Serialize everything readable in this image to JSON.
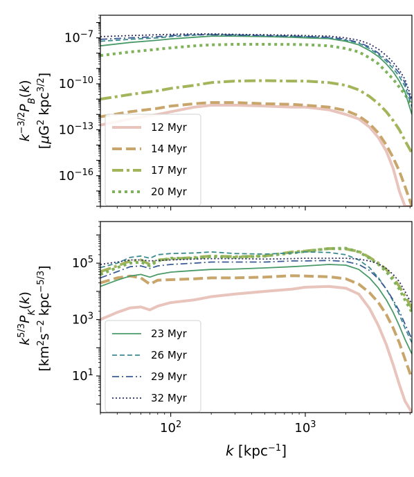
{
  "figure": {
    "xlabel": "k [kpc⁻¹]",
    "xlabel_main": "k",
    "xlabel_unit": " [kpc",
    "xlabel_sup": "−1",
    "xlabel_close": "]"
  },
  "chart_data": [
    {
      "type": "line",
      "id": "magnetic",
      "xscale": "log",
      "yscale": "log",
      "xlim": [
        30,
        6200
      ],
      "ylim": [
        1e-18,
        3e-06
      ],
      "xlabel": "",
      "ylabel_line1": "k^{-3/2} P_B(k)",
      "ylabel_line2": "[μG² kpc³ᐟ²]",
      "yticks": [
        {
          "value": 1e-07,
          "base": "10",
          "exp": "−7"
        },
        {
          "value": 1e-10,
          "base": "10",
          "exp": "−10"
        },
        {
          "value": 1e-13,
          "base": "10",
          "exp": "−13"
        },
        {
          "value": 1e-16,
          "base": "10",
          "exp": "−16"
        }
      ],
      "legend": {
        "position": "lower-left",
        "entries": [
          "12 Myr",
          "14 Myr",
          "17 Myr",
          "20 Myr"
        ]
      },
      "x": [
        30,
        50,
        80,
        100,
        150,
        200,
        300,
        500,
        800,
        1000,
        1500,
        2000,
        2500,
        3000,
        3500,
        4000,
        4500,
        5000,
        5500,
        6200
      ],
      "series": [
        {
          "name": "12 Myr",
          "values": [
            2e-13,
            5e-13,
            1e-12,
            1.5e-12,
            3e-12,
            4e-12,
            4e-12,
            3.5e-12,
            3e-12,
            3e-12,
            2e-12,
            1e-12,
            5e-13,
            1.5e-13,
            3e-14,
            4e-15,
            3e-16,
            1e-17,
            1e-18,
            1e-18
          ]
        },
        {
          "name": "14 Myr",
          "values": [
            7e-13,
            1.5e-12,
            2.5e-12,
            3.5e-12,
            5e-12,
            6e-12,
            6e-12,
            5e-12,
            4.5e-12,
            4e-12,
            3e-12,
            1.8e-12,
            8e-13,
            2.5e-13,
            6e-14,
            1e-14,
            1.5e-15,
            2e-16,
            2e-17,
            1e-18
          ]
        },
        {
          "name": "17 Myr",
          "values": [
            1e-11,
            2e-11,
            3.5e-11,
            5e-11,
            8e-11,
            1.2e-10,
            1.5e-10,
            1.6e-10,
            1.5e-10,
            1.5e-10,
            1.2e-10,
            8e-11,
            4e-11,
            1.5e-11,
            5e-12,
            1.5e-12,
            4e-13,
            1e-13,
            2e-14,
            3e-15
          ]
        },
        {
          "name": "20 Myr",
          "values": [
            7e-09,
            1.2e-08,
            1.8e-08,
            2.2e-08,
            3e-08,
            3.5e-08,
            3.8e-08,
            3.8e-08,
            3.7e-08,
            3.6e-08,
            3e-08,
            2e-08,
            1.2e-08,
            5e-09,
            2e-09,
            6e-10,
            2e-10,
            6e-11,
            2e-11,
            4e-12
          ]
        },
        {
          "name": "23 Myr",
          "values": [
            3e-08,
            5e-08,
            7e-08,
            8.5e-08,
            1.1e-07,
            1.3e-07,
            1.3e-07,
            1.2e-07,
            1.1e-07,
            1e-07,
            9e-08,
            6e-08,
            3.5e-08,
            1.5e-08,
            6e-09,
            2e-09,
            6e-10,
            1.5e-10,
            3e-11,
            1e-12
          ]
        },
        {
          "name": "26 Myr",
          "values": [
            6e-08,
            8e-08,
            1e-07,
            1.2e-07,
            1.5e-07,
            1.7e-07,
            1.6e-07,
            1.4e-07,
            1.3e-07,
            1.2e-07,
            1e-07,
            7e-08,
            4.5e-08,
            2e-08,
            8e-09,
            3e-09,
            1e-09,
            3e-10,
            7e-11,
            3e-12
          ]
        },
        {
          "name": "29 Myr",
          "values": [
            8e-08,
            1e-07,
            1.2e-07,
            1.4e-07,
            1.6e-07,
            1.6e-07,
            1.5e-07,
            1.4e-07,
            1.3e-07,
            1.2e-07,
            1.1e-07,
            8e-08,
            5e-08,
            2.5e-08,
            1e-08,
            4e-09,
            1.5e-09,
            5e-10,
            1.2e-10,
            6e-12
          ]
        },
        {
          "name": "32 Myr",
          "values": [
            1.2e-07,
            1.4e-07,
            1.6e-07,
            1.7e-07,
            1.8e-07,
            1.8e-07,
            1.7e-07,
            1.6e-07,
            1.5e-07,
            1.4e-07,
            1.3e-07,
            1e-07,
            7e-08,
            4e-08,
            1.8e-08,
            7e-09,
            2.5e-09,
            8e-10,
            2e-10,
            1e-11
          ]
        }
      ]
    },
    {
      "type": "line",
      "id": "kinetic",
      "xscale": "log",
      "yscale": "log",
      "xlim": [
        30,
        6200
      ],
      "ylim": [
        0.5,
        3000000.0
      ],
      "xlabel": "k [kpc⁻¹]",
      "xticks": [
        {
          "value": 100,
          "base": "10",
          "exp": "2"
        },
        {
          "value": 1000,
          "base": "10",
          "exp": "3"
        }
      ],
      "ylabel_line1": "k^{5/3} P_K(k)",
      "ylabel_line2": "[km²s⁻² kpc⁻⁵ᐟ³]",
      "yticks": [
        {
          "value": 100000.0,
          "base": "10",
          "exp": "5"
        },
        {
          "value": 1000.0,
          "base": "10",
          "exp": "3"
        },
        {
          "value": 10,
          "base": "10",
          "exp": "1"
        }
      ],
      "legend": {
        "position": "lower-left",
        "entries": [
          "23 Myr",
          "26 Myr",
          "29 Myr",
          "32 Myr"
        ]
      },
      "x": [
        30,
        40,
        50,
        60,
        70,
        80,
        100,
        150,
        200,
        300,
        500,
        800,
        1000,
        1500,
        2000,
        2500,
        3000,
        3500,
        4000,
        4500,
        5000,
        5500,
        6200
      ],
      "series": [
        {
          "name": "12 Myr",
          "values": [
            1000,
            1800,
            2600,
            2800,
            2200,
            3000,
            4000,
            5000,
            6500,
            8000,
            10000,
            12000,
            14000,
            15000,
            13000,
            8000,
            2500,
            600,
            130,
            25,
            5,
            1.3,
            0.5
          ]
        },
        {
          "name": "14 Myr",
          "values": [
            20000,
            30000,
            35000,
            30000,
            18000,
            25000,
            26000,
            28000,
            30000,
            30000,
            32000,
            36000,
            35000,
            33000,
            28000,
            18000,
            9000,
            4000,
            1500,
            500,
            150,
            40,
            8
          ]
        },
        {
          "name": "17 Myr",
          "values": [
            50000,
            80000,
            120000,
            130000,
            90000,
            130000,
            140000,
            160000,
            180000,
            170000,
            180000,
            250000,
            270000,
            330000,
            320000,
            260000,
            160000,
            100000,
            60000,
            30000,
            15000,
            7000,
            2500
          ]
        },
        {
          "name": "20 Myr",
          "values": [
            40000,
            70000,
            100000,
            110000,
            80000,
            120000,
            150000,
            150000,
            170000,
            160000,
            180000,
            230000,
            260000,
            330000,
            340000,
            250000,
            150000,
            90000,
            50000,
            25000,
            12000,
            5000,
            1800
          ]
        },
        {
          "name": "23 Myr",
          "values": [
            15000,
            25000,
            35000,
            40000,
            32000,
            40000,
            48000,
            55000,
            60000,
            62000,
            68000,
            75000,
            80000,
            90000,
            85000,
            60000,
            30000,
            13000,
            5000,
            1800,
            600,
            200,
            60
          ]
        },
        {
          "name": "26 Myr",
          "values": [
            70000,
            100000,
            160000,
            180000,
            150000,
            200000,
            220000,
            230000,
            250000,
            220000,
            210000,
            230000,
            250000,
            240000,
            200000,
            130000,
            70000,
            30000,
            12000,
            4500,
            1500,
            500,
            150
          ]
        },
        {
          "name": "29 Myr",
          "values": [
            30000,
            50000,
            75000,
            80000,
            65000,
            80000,
            90000,
            100000,
            110000,
            110000,
            110000,
            120000,
            120000,
            125000,
            115000,
            90000,
            55000,
            28000,
            12000,
            5000,
            2000,
            700,
            200
          ]
        },
        {
          "name": "32 Myr",
          "values": [
            90000,
            110000,
            130000,
            130000,
            120000,
            125000,
            130000,
            140000,
            145000,
            145000,
            140000,
            145000,
            150000,
            150000,
            150000,
            140000,
            120000,
            95000,
            65000,
            40000,
            22000,
            10000,
            3500
          ]
        }
      ]
    }
  ],
  "styles": {
    "12 Myr": {
      "color": "#e8c4bc",
      "dash": "",
      "width": 4
    },
    "14 Myr": {
      "color": "#c8a56a",
      "dash": "14,6",
      "width": 4
    },
    "17 Myr": {
      "color": "#a3b55a",
      "dash": "16,5,4,5",
      "width": 4
    },
    "20 Myr": {
      "color": "#7fb25a",
      "dash": "4,5",
      "width": 4
    },
    "23 Myr": {
      "color": "#4a9a68",
      "dash": "",
      "width": 1.8
    },
    "26 Myr": {
      "color": "#3a8a8e",
      "dash": "7,4",
      "width": 1.8
    },
    "29 Myr": {
      "color": "#3a5a96",
      "dash": "10,4,2,4",
      "width": 1.8
    },
    "32 Myr": {
      "color": "#2a2a60",
      "dash": "2,3",
      "width": 1.8
    }
  }
}
